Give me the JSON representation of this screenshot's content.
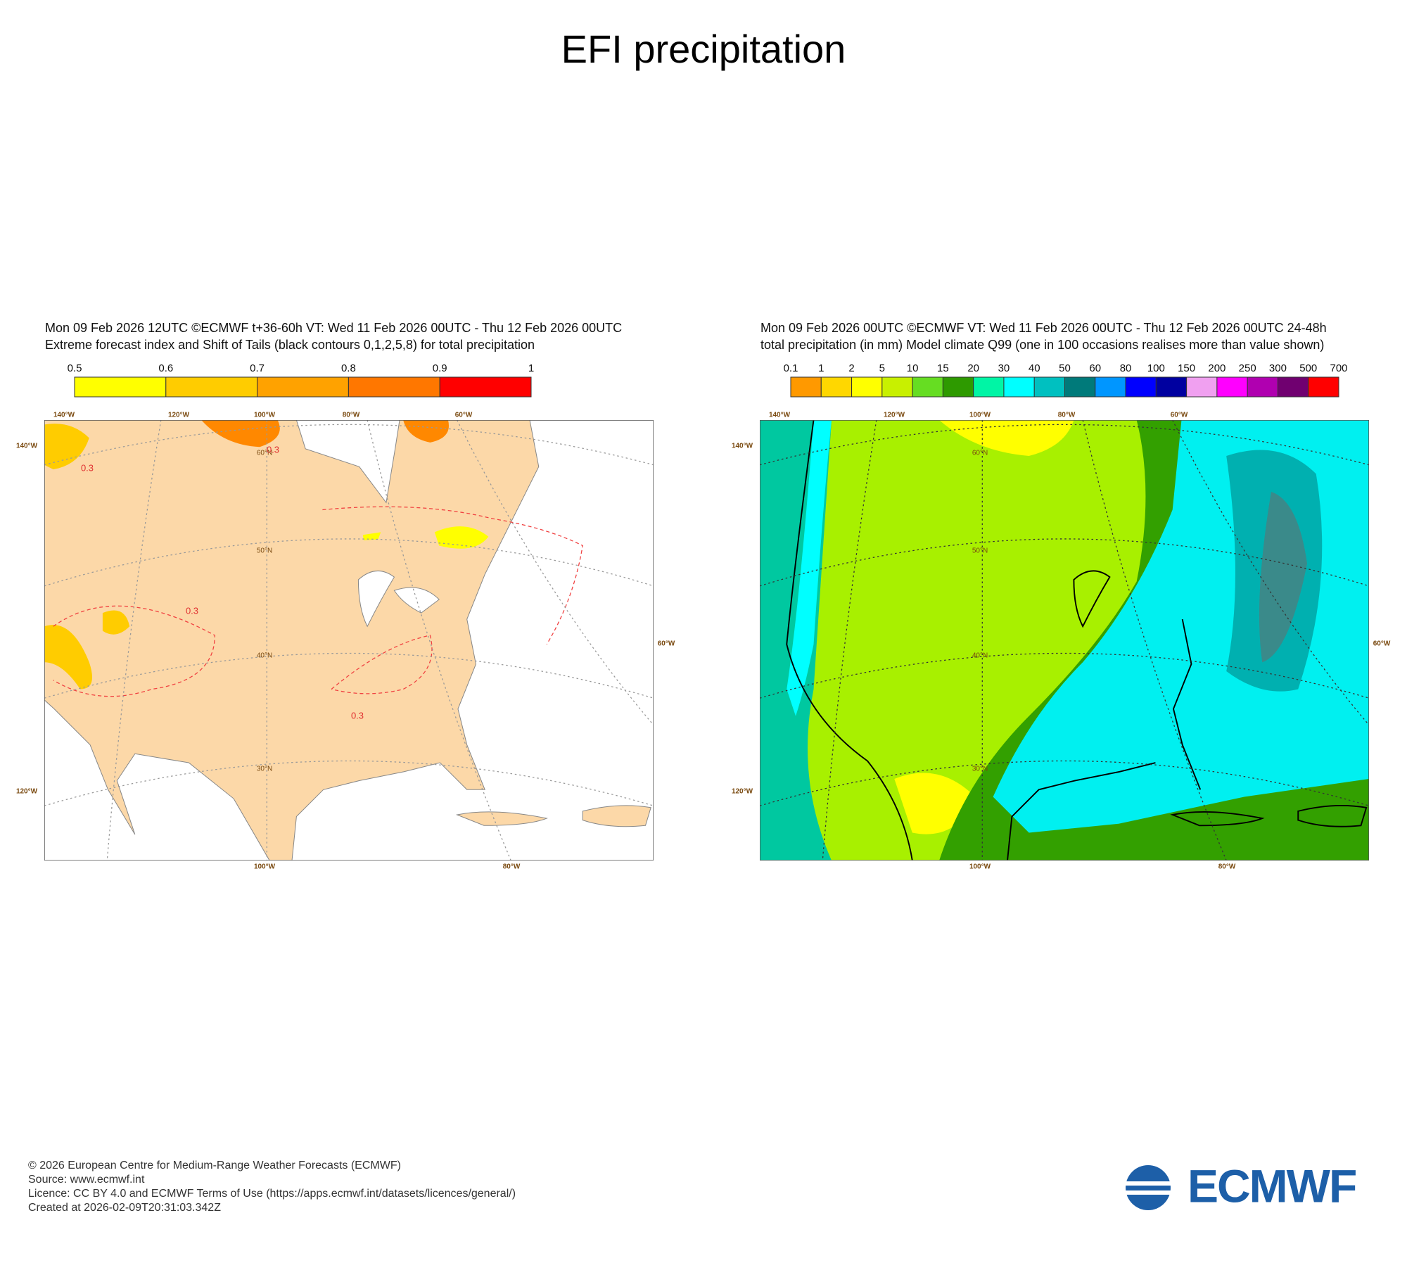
{
  "title": "EFI precipitation",
  "panels": [
    {
      "header": [
        "Mon 09 Feb 2026 12UTC ©ECMWF t+36-60h  VT: Wed 11 Feb 2026 00UTC - Thu 12 Feb 2026 00UTC",
        "Extreme forecast index and Shift of Tails (black contours 0,1,2,5,8) for total precipitation"
      ],
      "colorbar": {
        "labels": [
          "0.5",
          "0.6",
          "0.7",
          "0.8",
          "0.9",
          "1"
        ],
        "colors": [
          "#ffff00",
          "#ffcc00",
          "#ffa200",
          "#ff7700",
          "#ff0000"
        ]
      },
      "lon_top": [
        "140°W",
        "120°W",
        "100°W",
        "80°W",
        "60°W"
      ],
      "lat_left": [
        "140°W",
        "120°W"
      ],
      "lon_right": [
        "60°W"
      ],
      "lon_bottom": [
        "100°W",
        "80°W"
      ],
      "lat_inner": [
        "60°N",
        "50°N",
        "40°N",
        "30°N"
      ],
      "contour_labels": [
        "0.3",
        "0.3",
        "0.3",
        "0.3"
      ]
    },
    {
      "header": [
        "Mon 09 Feb 2026 00UTC ©ECMWF VT: Wed 11 Feb 2026 00UTC - Thu 12 Feb 2026 00UTC   24-48h",
        "total precipitation  (in mm)  Model climate Q99 (one in 100 occasions realises more than value shown)"
      ],
      "colorbar": {
        "labels": [
          "0.1",
          "1",
          "2",
          "5",
          "10",
          "15",
          "20",
          "30",
          "40",
          "50",
          "60",
          "80",
          "100",
          "150",
          "200",
          "250",
          "300",
          "500",
          "700"
        ],
        "colors": [
          "#ff9900",
          "#ffd700",
          "#ffff00",
          "#c8f000",
          "#66dd22",
          "#2e9a00",
          "#00f5a5",
          "#00ffff",
          "#00c0c0",
          "#007a7a",
          "#0096ff",
          "#0000ff",
          "#0000a0",
          "#f0a0f0",
          "#ff00ff",
          "#b000b0",
          "#700070",
          "#ff0000"
        ]
      },
      "lon_top": [
        "140°W",
        "120°W",
        "100°W",
        "80°W",
        "60°W"
      ],
      "lat_left": [
        "140°W",
        "120°W"
      ],
      "lon_right": [
        "60°W"
      ],
      "lon_bottom": [
        "100°W",
        "80°W"
      ],
      "lat_inner": [
        "60°N",
        "50°N",
        "40°N",
        "30°N"
      ]
    }
  ],
  "footer": [
    "© 2026 European Centre for Medium-Range Weather Forecasts (ECMWF)",
    "Source: www.ecmwf.int",
    "Licence: CC BY 4.0 and ECMWF Terms of Use (https://apps.ecmwf.int/datasets/licences/general/)",
    "Created at 2026-02-09T20:31:03.342Z"
  ],
  "logo": "ECMWF"
}
